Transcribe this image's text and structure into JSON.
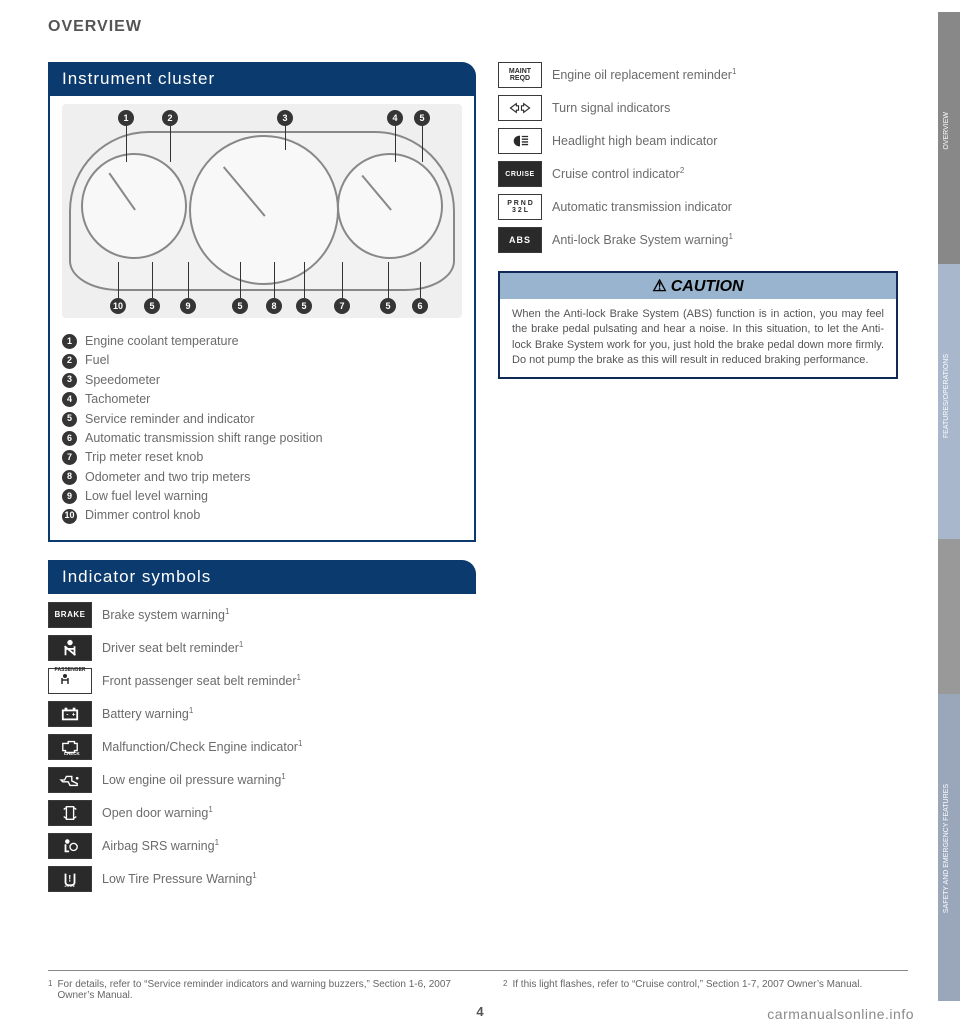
{
  "page": {
    "title": "OVERVIEW",
    "number": "4",
    "watermark": "carmanualsonline.info"
  },
  "sidebar": {
    "tabs": [
      "OVERVIEW",
      "FEATURES/OPERATIONS",
      "",
      "SAFETY AND EMERGENCY FEATURES"
    ]
  },
  "cluster": {
    "header": "Instrument cluster",
    "top_callouts": [
      "1",
      "2",
      "3",
      "4",
      "5"
    ],
    "bottom_callouts": [
      "10",
      "5",
      "9",
      "5",
      "8",
      "5",
      "7",
      "5",
      "6"
    ],
    "legend": [
      {
        "n": "1",
        "label": "Engine coolant temperature"
      },
      {
        "n": "2",
        "label": "Fuel"
      },
      {
        "n": "3",
        "label": "Speedometer"
      },
      {
        "n": "4",
        "label": "Tachometer"
      },
      {
        "n": "5",
        "label": "Service reminder and indicator"
      },
      {
        "n": "6",
        "label": "Automatic transmission shift range position"
      },
      {
        "n": "7",
        "label": "Trip meter reset knob"
      },
      {
        "n": "8",
        "label": "Odometer and two trip meters"
      },
      {
        "n": "9",
        "label": "Low fuel level warning"
      },
      {
        "n": "10",
        "label": "Dimmer control knob"
      }
    ]
  },
  "indicators": {
    "header": "Indicator symbols",
    "left": [
      {
        "icon": "BRAKE",
        "dark": true,
        "label": "Brake system warning",
        "sup": "1"
      },
      {
        "icon": "seatbelt",
        "dark": true,
        "label": "Driver seat belt reminder",
        "sup": "1"
      },
      {
        "icon": "PASSENGER",
        "dark": false,
        "label": "Front passenger seat belt reminder",
        "sup": "1"
      },
      {
        "icon": "battery",
        "dark": true,
        "label": "Battery warning",
        "sup": "1"
      },
      {
        "icon": "check",
        "dark": true,
        "label": "Malfunction/Check Engine indicator",
        "sup": "1"
      },
      {
        "icon": "oil",
        "dark": true,
        "label": "Low engine oil pressure warning",
        "sup": "1"
      },
      {
        "icon": "door",
        "dark": true,
        "label": "Open door warning",
        "sup": "1"
      },
      {
        "icon": "airbag",
        "dark": true,
        "label": "Airbag SRS warning",
        "sup": "1"
      },
      {
        "icon": "tire",
        "dark": true,
        "label": "Low Tire Pressure Warning",
        "sup": "1"
      }
    ],
    "right": [
      {
        "icon": "MAINT REQD",
        "dark": false,
        "label": "Engine oil replacement reminder",
        "sup": "1"
      },
      {
        "icon": "turn",
        "dark": false,
        "label": "Turn signal indicators",
        "sup": ""
      },
      {
        "icon": "highbeam",
        "dark": false,
        "label": "Headlight high beam indicator",
        "sup": ""
      },
      {
        "icon": "CRUISE",
        "dark": true,
        "label": "Cruise control indicator",
        "sup": "2"
      },
      {
        "icon": "PRND 32L",
        "dark": false,
        "label": "Automatic transmission indicator",
        "sup": ""
      },
      {
        "icon": "ABS",
        "dark": true,
        "label": "Anti-lock Brake System warning",
        "sup": "1"
      }
    ]
  },
  "caution": {
    "header": "CAUTION",
    "body": "When the Anti-lock Brake System (ABS) function is in action, you may feel the brake pedal pulsating and hear a noise. In this situation, to let the Anti-lock Brake System work for you, just hold the brake pedal down more firmly. Do not pump the brake as this will result in reduced braking performance."
  },
  "footnotes": {
    "n1": "For details, refer to “Service reminder indicators and warning buzzers,” Section 1-6, 2007 Owner’s Manual.",
    "n2": "If this light flashes, refer to “Cruise control,” Section 1-7, 2007 Owner’s Manual."
  },
  "style": {
    "header_bg": "#0b3a6e",
    "sidebar_blue": "#a8b7cc",
    "text_gray": "#6b6b6b"
  }
}
